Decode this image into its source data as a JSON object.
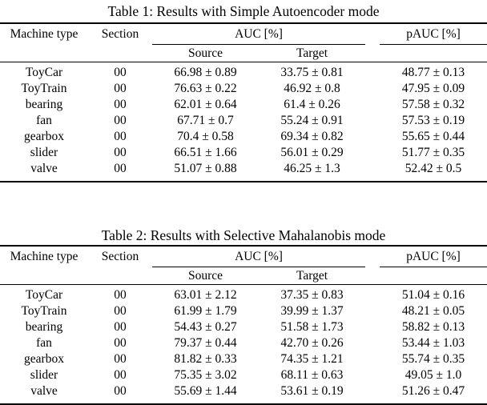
{
  "page": {
    "background": "#ffffff",
    "text_color": "#000000"
  },
  "tables": [
    {
      "title": "Table 1: Results with Simple Autoencoder mode",
      "headers": {
        "machine": "Machine type",
        "section": "Section",
        "auc": "AUC [%]",
        "pauc": "pAUC [%]",
        "source": "Source",
        "target": "Target"
      },
      "rows": [
        {
          "machine": "ToyCar",
          "section": "00",
          "source": "66.98 ± 0.89",
          "target": "33.75 ± 0.81",
          "pauc": "48.77 ± 0.13"
        },
        {
          "machine": "ToyTrain",
          "section": "00",
          "source": "76.63 ± 0.22",
          "target": "46.92 ± 0.8",
          "pauc": "47.95 ± 0.09"
        },
        {
          "machine": "bearing",
          "section": "00",
          "source": "62.01 ± 0.64",
          "target": "61.4 ± 0.26",
          "pauc": "57.58 ± 0.32"
        },
        {
          "machine": "fan",
          "section": "00",
          "source": "67.71 ± 0.7",
          "target": "55.24 ± 0.91",
          "pauc": "57.53 ± 0.19"
        },
        {
          "machine": "gearbox",
          "section": "00",
          "source": "70.4 ± 0.58",
          "target": "69.34 ± 0.82",
          "pauc": "55.65 ± 0.44"
        },
        {
          "machine": "slider",
          "section": "00",
          "source": "66.51 ± 1.66",
          "target": "56.01 ± 0.29",
          "pauc": "51.77 ± 0.35"
        },
        {
          "machine": "valve",
          "section": "00",
          "source": "51.07 ± 0.88",
          "target": "46.25 ± 1.3",
          "pauc": "52.42 ± 0.5"
        }
      ]
    },
    {
      "title": "Table 2: Results with Selective Mahalanobis mode",
      "headers": {
        "machine": "Machine type",
        "section": "Section",
        "auc": "AUC [%]",
        "pauc": "pAUC [%]",
        "source": "Source",
        "target": "Target"
      },
      "rows": [
        {
          "machine": "ToyCar",
          "section": "00",
          "source": "63.01 ± 2.12",
          "target": "37.35 ± 0.83",
          "pauc": "51.04 ± 0.16"
        },
        {
          "machine": "ToyTrain",
          "section": "00",
          "source": "61.99 ± 1.79",
          "target": "39.99 ± 1.37",
          "pauc": "48.21 ± 0.05"
        },
        {
          "machine": "bearing",
          "section": "00",
          "source": "54.43 ± 0.27",
          "target": "51.58 ± 1.73",
          "pauc": "58.82 ± 0.13"
        },
        {
          "machine": "fan",
          "section": "00",
          "source": "79.37 ± 0.44",
          "target": "42.70 ± 0.26",
          "pauc": "53.44 ± 1.03"
        },
        {
          "machine": "gearbox",
          "section": "00",
          "source": "81.82 ± 0.33",
          "target": "74.35 ± 1.21",
          "pauc": "55.74 ± 0.35"
        },
        {
          "machine": "slider",
          "section": "00",
          "source": "75.35 ± 3.02",
          "target": "68.11 ± 0.63",
          "pauc": "49.05 ± 1.0"
        },
        {
          "machine": "valve",
          "section": "00",
          "source": "55.69 ± 1.44",
          "target": "53.61 ± 0.19",
          "pauc": "51.26 ± 0.47"
        }
      ]
    }
  ]
}
